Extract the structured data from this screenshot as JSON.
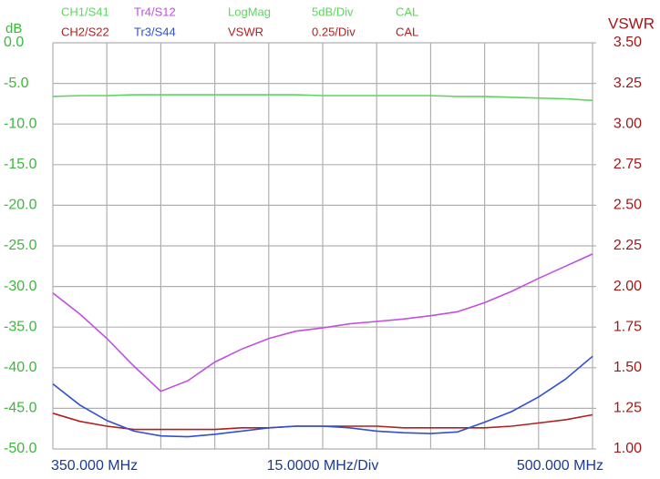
{
  "chart_data": {
    "type": "line",
    "header": {
      "row1": [
        "LogMag",
        "5dB/Div",
        "CAL"
      ],
      "row2": [
        "VSWR",
        "0.25/Div",
        "CAL"
      ]
    },
    "ylabel": "dB",
    "y2label": "VSWR",
    "xlabel": "15.0000 MHz/Div",
    "x": [
      350,
      357.5,
      365,
      372.5,
      380,
      387.5,
      395,
      402.5,
      410,
      417.5,
      425,
      432.5,
      440,
      447.5,
      455,
      462.5,
      470,
      477.5,
      485,
      492.5,
      500
    ],
    "xlim": [
      350,
      500
    ],
    "xticks": [
      {
        "value": 350,
        "label": "350.000 MHz"
      },
      {
        "value": 500,
        "label": "500.000 MHz"
      }
    ],
    "xgrid": [
      365,
      380,
      395,
      410,
      425,
      440,
      455,
      470,
      485
    ],
    "ylim": [
      -50,
      0
    ],
    "yticks": [
      {
        "value": 0,
        "label": "0.0"
      },
      {
        "value": -5,
        "label": "-5.0"
      },
      {
        "value": -10,
        "label": "-10.0"
      },
      {
        "value": -15,
        "label": "-15.0"
      },
      {
        "value": -20,
        "label": "-20.0"
      },
      {
        "value": -25,
        "label": "-25.0"
      },
      {
        "value": -30,
        "label": "-30.0"
      },
      {
        "value": -35,
        "label": "-35.0"
      },
      {
        "value": -40,
        "label": "-40.0"
      },
      {
        "value": -45,
        "label": "-45.0"
      },
      {
        "value": -50,
        "label": "-50.0"
      }
    ],
    "y2lim": [
      1,
      3.5
    ],
    "y2ticks": [
      {
        "value": 3.5,
        "label": "3.50"
      },
      {
        "value": 3.25,
        "label": "3.25"
      },
      {
        "value": 3,
        "label": "3.00"
      },
      {
        "value": 2.75,
        "label": "2.75"
      },
      {
        "value": 2.5,
        "label": "2.50"
      },
      {
        "value": 2.25,
        "label": "2.25"
      },
      {
        "value": 2,
        "label": "2.00"
      },
      {
        "value": 1.75,
        "label": "1.75"
      },
      {
        "value": 1.5,
        "label": "1.50"
      },
      {
        "value": 1.25,
        "label": "1.25"
      },
      {
        "value": 1,
        "label": "1.00"
      }
    ],
    "grid": true,
    "y_color": "#3cb83c",
    "y2_color": "#a01818",
    "series": [
      {
        "name": "CH1/S41",
        "color": "#5ed65e",
        "values": [
          -6.6,
          -6.5,
          -6.5,
          -6.4,
          -6.4,
          -6.4,
          -6.4,
          -6.4,
          -6.4,
          -6.4,
          -6.5,
          -6.5,
          -6.5,
          -6.5,
          -6.5,
          -6.6,
          -6.6,
          -6.7,
          -6.8,
          -6.9,
          -7.1
        ]
      },
      {
        "name": "Tr4/S12",
        "color": "#c050e0",
        "values": [
          -30.8,
          -33.4,
          -36.4,
          -39.8,
          -42.9,
          -41.6,
          -39.3,
          -37.7,
          -36.4,
          -35.5,
          -35.1,
          -34.6,
          -34.3,
          -34.0,
          -33.6,
          -33.1,
          -32.0,
          -30.6,
          -29.0,
          -27.5,
          -26.0
        ]
      },
      {
        "name": "CH2/S22",
        "color": "#b02020",
        "axis": "y2",
        "values": [
          1.22,
          1.17,
          1.14,
          1.12,
          1.12,
          1.12,
          1.12,
          1.13,
          1.13,
          1.14,
          1.14,
          1.14,
          1.14,
          1.13,
          1.13,
          1.13,
          1.13,
          1.14,
          1.16,
          1.18,
          1.21
        ]
      },
      {
        "name": "Tr3/S44",
        "color": "#3050d0",
        "values": [
          -42.0,
          -44.6,
          -46.5,
          -47.8,
          -48.4,
          -48.5,
          -48.2,
          -47.8,
          -47.4,
          -47.2,
          -47.2,
          -47.4,
          -47.8,
          -48.0,
          -48.1,
          -47.9,
          -46.7,
          -45.4,
          -43.6,
          -41.4,
          -38.6
        ]
      }
    ]
  }
}
